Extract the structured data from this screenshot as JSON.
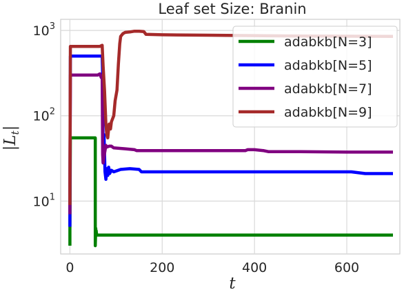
{
  "chart_data": {
    "type": "line",
    "title": "Leaf set Size: Branin",
    "xlabel": "t",
    "ylabel": "|L_t|",
    "xlim": [
      -20,
      715
    ],
    "ylim": [
      2.4,
      1350
    ],
    "yscale": "log",
    "xticks": [
      0,
      200,
      400,
      600
    ],
    "xtick_labels": [
      "0",
      "200",
      "400",
      "600"
    ],
    "yticks": [
      10,
      100,
      1000
    ],
    "ytick_labels": [
      {
        "base": "10",
        "exp": "1"
      },
      {
        "base": "10",
        "exp": "2"
      },
      {
        "base": "10",
        "exp": "3"
      }
    ],
    "grid": true,
    "legend_position": "top-right",
    "series": [
      {
        "name": "adabkb[N=3]",
        "color": "#008000",
        "x": [
          0,
          0,
          1,
          3,
          55,
          55,
          56,
          56,
          57,
          58,
          700
        ],
        "y": [
          3,
          4.5,
          55,
          55,
          55,
          3,
          4.8,
          4,
          4.5,
          4,
          4
        ]
      },
      {
        "name": "adabkb[N=5]",
        "color": "#0000ff",
        "x": [
          0,
          0,
          1,
          3,
          70,
          71,
          72,
          74,
          76,
          78,
          80,
          82,
          84,
          86,
          90,
          95,
          110,
          130,
          150,
          155,
          160,
          600,
          610,
          640,
          700
        ],
        "y": [
          5,
          8,
          500,
          500,
          500,
          300,
          28,
          60,
          22,
          18,
          24,
          20,
          25,
          21,
          23,
          22,
          23.5,
          24,
          23.5,
          22,
          22,
          22,
          22,
          21,
          21
        ]
      },
      {
        "name": "adabkb[N=7]",
        "color": "#800080",
        "x": [
          0,
          0,
          1,
          3,
          60,
          65,
          68,
          70,
          71,
          72,
          75,
          78,
          80,
          85,
          90,
          95,
          120,
          140,
          145,
          150,
          380,
          385,
          400,
          420,
          430,
          500,
          600,
          700
        ],
        "y": [
          7,
          12,
          300,
          300,
          300,
          310,
          280,
          295,
          35,
          28,
          36,
          45,
          43,
          44,
          44,
          42,
          41,
          40,
          39,
          39,
          39,
          40,
          40,
          39,
          38,
          38,
          37.5,
          37.5
        ]
      },
      {
        "name": "adabkb[N=9]",
        "color": "#a52a2a",
        "x": [
          0,
          0,
          1,
          3,
          65,
          70,
          72,
          75,
          78,
          80,
          82,
          85,
          88,
          90,
          95,
          98,
          102,
          105,
          108,
          110,
          115,
          120,
          130,
          140,
          150,
          160,
          165,
          200,
          300,
          400,
          500,
          600,
          700
        ],
        "y": [
          9,
          15,
          650,
          650,
          650,
          670,
          380,
          200,
          80,
          60,
          55,
          80,
          70,
          85,
          100,
          150,
          200,
          400,
          700,
          850,
          920,
          950,
          960,
          980,
          980,
          970,
          900,
          890,
          880,
          870,
          860,
          855,
          850
        ]
      }
    ]
  }
}
